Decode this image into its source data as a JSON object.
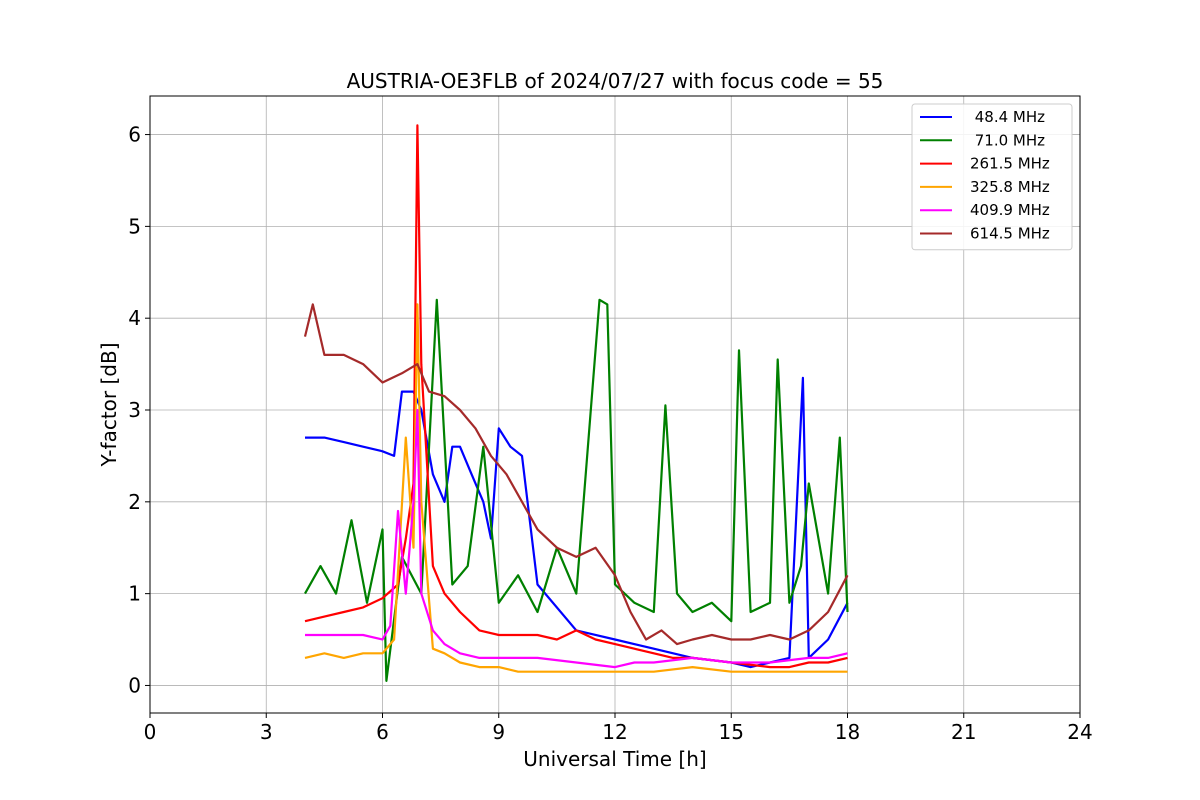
{
  "chart_data": {
    "type": "line",
    "title": "AUSTRIA-OE3FLB of 2024/07/27 with focus code = 55",
    "xlabel": "Universal Time [h]",
    "ylabel": "Y-factor [dB]",
    "xlim": [
      0,
      24
    ],
    "ylim": [
      -0.3,
      6.42
    ],
    "xticks": [
      0,
      3,
      6,
      9,
      12,
      15,
      18,
      21,
      24
    ],
    "yticks": [
      0,
      1,
      2,
      3,
      4,
      5,
      6
    ],
    "grid": true,
    "legend_position": "top-right",
    "series": [
      {
        "name": " 48.4 MHz",
        "color": "#0000ff",
        "x": [
          4.0,
          4.5,
          5.0,
          5.5,
          6.0,
          6.3,
          6.5,
          6.8,
          7.0,
          7.3,
          7.6,
          7.8,
          8.0,
          8.3,
          8.6,
          8.8,
          9.0,
          9.3,
          9.6,
          10.0,
          11.0,
          12.0,
          13.0,
          14.0,
          15.0,
          15.5,
          16.0,
          16.5,
          16.85,
          17.0,
          17.5,
          18.0
        ],
        "values": [
          2.7,
          2.7,
          2.65,
          2.6,
          2.55,
          2.5,
          3.2,
          3.2,
          3.0,
          2.3,
          2.0,
          2.6,
          2.6,
          2.3,
          2.0,
          1.6,
          2.8,
          2.6,
          2.5,
          1.1,
          0.6,
          0.5,
          0.4,
          0.3,
          0.25,
          0.2,
          0.25,
          0.3,
          3.35,
          0.3,
          0.5,
          0.9
        ]
      },
      {
        "name": " 71.0 MHz",
        "color": "#008000",
        "x": [
          4.0,
          4.4,
          4.8,
          5.2,
          5.6,
          6.0,
          6.1,
          6.5,
          7.0,
          7.4,
          7.8,
          8.2,
          8.6,
          9.0,
          9.5,
          10.0,
          10.5,
          11.0,
          11.6,
          11.8,
          12.0,
          12.5,
          13.0,
          13.3,
          13.6,
          14.0,
          14.5,
          15.0,
          15.2,
          15.5,
          16.0,
          16.2,
          16.5,
          16.8,
          17.0,
          17.5,
          17.8,
          18.0
        ],
        "values": [
          1.0,
          1.3,
          1.0,
          1.8,
          0.9,
          1.7,
          0.05,
          1.4,
          1.0,
          4.2,
          1.1,
          1.3,
          2.6,
          0.9,
          1.2,
          0.8,
          1.5,
          1.0,
          4.2,
          4.15,
          1.1,
          0.9,
          0.8,
          3.05,
          1.0,
          0.8,
          0.9,
          0.7,
          3.65,
          0.8,
          0.9,
          3.55,
          0.9,
          1.3,
          2.2,
          1.0,
          2.7,
          0.8
        ]
      },
      {
        "name": "261.5 MHz",
        "color": "#ff0000",
        "x": [
          4.0,
          4.5,
          5.0,
          5.5,
          6.0,
          6.4,
          6.6,
          6.8,
          6.9,
          7.0,
          7.3,
          7.6,
          8.0,
          8.5,
          9.0,
          9.5,
          10.0,
          10.5,
          11.0,
          11.5,
          12.0,
          12.5,
          13.0,
          13.5,
          14.0,
          15.0,
          16.0,
          16.5,
          17.0,
          17.5,
          18.0
        ],
        "values": [
          0.7,
          0.75,
          0.8,
          0.85,
          0.95,
          1.1,
          1.6,
          2.2,
          6.1,
          3.5,
          1.3,
          1.0,
          0.8,
          0.6,
          0.55,
          0.55,
          0.55,
          0.5,
          0.6,
          0.5,
          0.45,
          0.4,
          0.35,
          0.3,
          0.3,
          0.25,
          0.2,
          0.2,
          0.25,
          0.25,
          0.3
        ]
      },
      {
        "name": "325.8 MHz",
        "color": "#ffa500",
        "x": [
          4.0,
          4.5,
          5.0,
          5.5,
          6.0,
          6.3,
          6.6,
          6.8,
          6.9,
          7.0,
          7.3,
          7.6,
          8.0,
          8.5,
          9.0,
          9.5,
          10.0,
          11.0,
          12.0,
          13.0,
          14.0,
          15.0,
          16.0,
          17.0,
          18.0
        ],
        "values": [
          0.3,
          0.35,
          0.3,
          0.35,
          0.35,
          0.5,
          2.7,
          1.5,
          4.15,
          2.0,
          0.4,
          0.35,
          0.25,
          0.2,
          0.2,
          0.15,
          0.15,
          0.15,
          0.15,
          0.15,
          0.2,
          0.15,
          0.15,
          0.15,
          0.15
        ]
      },
      {
        "name": "409.9 MHz",
        "color": "#ff00ff",
        "x": [
          4.0,
          4.5,
          5.0,
          5.5,
          6.0,
          6.2,
          6.4,
          6.6,
          6.8,
          6.9,
          7.0,
          7.3,
          7.6,
          8.0,
          8.5,
          9.0,
          9.5,
          10.0,
          11.0,
          12.0,
          12.5,
          13.0,
          14.0,
          15.0,
          16.0,
          17.0,
          17.5,
          18.0
        ],
        "values": [
          0.55,
          0.55,
          0.55,
          0.55,
          0.5,
          0.65,
          1.9,
          1.0,
          2.0,
          3.0,
          1.0,
          0.6,
          0.45,
          0.35,
          0.3,
          0.3,
          0.3,
          0.3,
          0.25,
          0.2,
          0.25,
          0.25,
          0.3,
          0.25,
          0.25,
          0.3,
          0.3,
          0.35
        ]
      },
      {
        "name": "614.5 MHz",
        "color": "#a52a2a",
        "x": [
          4.0,
          4.2,
          4.5,
          5.0,
          5.5,
          6.0,
          6.5,
          6.9,
          7.2,
          7.6,
          8.0,
          8.4,
          8.8,
          9.2,
          9.6,
          10.0,
          10.5,
          11.0,
          11.5,
          12.0,
          12.4,
          12.8,
          13.2,
          13.6,
          14.0,
          14.5,
          15.0,
          15.5,
          16.0,
          16.5,
          17.0,
          17.5,
          18.0
        ],
        "values": [
          3.8,
          4.15,
          3.6,
          3.6,
          3.5,
          3.3,
          3.4,
          3.5,
          3.2,
          3.15,
          3.0,
          2.8,
          2.5,
          2.3,
          2.0,
          1.7,
          1.5,
          1.4,
          1.5,
          1.2,
          0.8,
          0.5,
          0.6,
          0.45,
          0.5,
          0.55,
          0.5,
          0.5,
          0.55,
          0.5,
          0.6,
          0.8,
          1.2
        ]
      }
    ]
  }
}
